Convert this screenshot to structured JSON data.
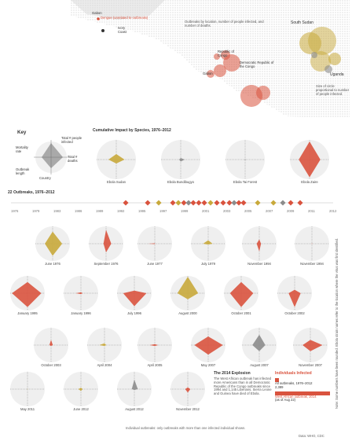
{
  "map": {
    "labels": {
      "gabon": "Gabon",
      "legend_dengue": "Dengue (unrelated to outbreaks)",
      "ivory_coast": "Ivory Coast",
      "south_sudan": "South Sudan",
      "uganda": "Uganda",
      "republic_congo": "Republic of Congo",
      "drc": "Democratic Republic of the Congo",
      "gabon2": "Gabon",
      "note_top": "Outbreaks by location, number of people infected, and number of deaths.",
      "note_bottom": "Size of circle proportional to number of people infected."
    },
    "numbers": [
      "284",
      "318",
      "425",
      "38",
      "57",
      "66",
      "33",
      "64",
      "17",
      "315",
      "52",
      "11",
      "18",
      "264",
      "7",
      "425",
      "93",
      "59",
      "2",
      "4"
    ]
  },
  "key": {
    "title": "Key",
    "labels": {
      "infected": "Total # people infected",
      "deaths": "Total # deaths",
      "mortality": "Mortality rate",
      "lost": "Outbreak length",
      "strain": "Strain"
    },
    "example_label": "Country"
  },
  "cumulative": {
    "title": "Cumulative Impact by Species, 1976–2012",
    "species": [
      {
        "label": "Ebola Sudan",
        "color": "#c8a93b",
        "top": "779",
        "left": "412",
        "right": "",
        "bottom": "53%",
        "shape": [
          0.28,
          0.42,
          0.2,
          0.4
        ]
      },
      {
        "label": "Ebola Bundibugyo",
        "color": "#8c8c8c",
        "top": "",
        "left": "",
        "right": "",
        "bottom": "",
        "shape": [
          0.08,
          0.2,
          0.1,
          0.08
        ]
      },
      {
        "label": "Ebola Tai Forest",
        "color": "#333333",
        "top": "",
        "left": "",
        "right": "",
        "bottom": "",
        "shape": [
          0.02,
          0.02,
          0.02,
          0.02
        ]
      },
      {
        "label": "Ebola Zaire",
        "color": "#d9533e",
        "top": "",
        "left": "1,121",
        "right": "1,421",
        "bottom": "",
        "shape": [
          0.92,
          0.55,
          0.9,
          0.55
        ]
      }
    ]
  },
  "outbreaks": {
    "title": "22 Outbreaks, 1976–2012",
    "timeline_years": [
      "1976",
      "1979",
      "1983",
      "1986",
      "1989",
      "1992",
      "1995",
      "1997",
      "1999",
      "2001",
      "2003",
      "2005",
      "2007",
      "2009",
      "2011",
      "2012"
    ]
  },
  "panels": [
    {
      "label": "June 1976",
      "color": "#c8a93b",
      "shape": [
        0.7,
        0.55,
        0.7,
        0.45
      ]
    },
    {
      "label": "September 1976",
      "color": "#d9533e",
      "shape": [
        0.8,
        0.3,
        0.5,
        0.15
      ]
    },
    {
      "label": "June 1977",
      "color": "#d9533e",
      "shape": [
        0.02,
        0.02,
        0.02,
        0.4
      ]
    },
    {
      "label": "July 1979",
      "color": "#c8a93b",
      "shape": [
        0.2,
        0.25,
        0.05,
        0.3
      ]
    },
    {
      "label": "November 1994",
      "color": "#d9533e",
      "shape": [
        0.25,
        0.1,
        0.45,
        0.15
      ]
    },
    {
      "label": "November 1994",
      "color": "#d9533e",
      "shape": [
        0.02,
        0.02,
        0.02,
        0.02
      ]
    },
    {
      "label": "January 1995",
      "color": "#d9533e",
      "shape": [
        0.65,
        0.8,
        0.8,
        0.9
      ]
    },
    {
      "label": "January 1996",
      "color": "#d9533e",
      "shape": [
        0.05,
        0.1,
        0.05,
        0.3
      ]
    },
    {
      "label": "July 1996",
      "color": "#d9533e",
      "shape": [
        0.15,
        0.7,
        0.75,
        0.65
      ]
    },
    {
      "label": "August 2000",
      "color": "#c8a93b",
      "shape": [
        0.95,
        0.6,
        0.35,
        0.6
      ]
    },
    {
      "label": "October 2001",
      "color": "#d9533e",
      "shape": [
        0.65,
        0.7,
        0.8,
        0.65
      ]
    },
    {
      "label": "October 2002",
      "color": "#d9533e",
      "shape": [
        0.2,
        0.35,
        0.8,
        0.35
      ]
    },
    {
      "label": "October 2003",
      "color": "#d9533e",
      "shape": [
        0.3,
        0.1,
        0.05,
        0.1
      ]
    },
    {
      "label": "April 2004",
      "color": "#c8a93b",
      "shape": [
        0.1,
        0.1,
        0.05,
        0.3
      ]
    },
    {
      "label": "April 2005",
      "color": "#d9533e",
      "shape": [
        0.05,
        0.2,
        0.05,
        0.3
      ]
    },
    {
      "label": "May 2007",
      "color": "#d9533e",
      "shape": [
        0.5,
        0.85,
        0.55,
        0.8
      ]
    },
    {
      "label": "August 2007",
      "color": "#8c8c8c",
      "shape": [
        0.6,
        0.35,
        0.35,
        0.4
      ]
    },
    {
      "label": "November 2007",
      "color": "#d9533e",
      "shape": [
        0.3,
        0.7,
        0.35,
        0.45
      ]
    },
    {
      "label": "May 2011",
      "color": "#c8a93b",
      "shape": [
        0.02,
        0.02,
        0.02,
        0.02
      ]
    },
    {
      "label": "June 2012",
      "color": "#c8a93b",
      "shape": [
        0.08,
        0.1,
        0.1,
        0.15
      ]
    },
    {
      "label": "August 2012",
      "color": "#8c8c8c",
      "shape": [
        0.55,
        0.2,
        0.05,
        0.15
      ]
    },
    {
      "label": "November 2012",
      "color": "#d9533e",
      "shape": [
        0.1,
        0.15,
        0.2,
        0.15
      ]
    }
  ],
  "explosion": {
    "title": "The 2014 Explosion",
    "text": "The West African outbreak has infected more Americans than in all Democratic Republic of the Congo outbreaks since 1994 and 1,145 Liberians, Sierra Leone and Guinea have died of Ebola."
  },
  "infected_legend": {
    "title": "Individuals Infected",
    "row1": "All outbreaks, 1976–2012",
    "row1_value": "2,389",
    "row2": "West African outbreak, 2014",
    "row2_value": "(as of Aug 22)"
  },
  "footnote": "Individual outbreaks: only outbreaks with more than one infected individual shown.",
  "credit": "Data: WHO, CDC",
  "side_note": "Note: Some numbers have been rounded. Ebola strain names refer to the location where the virus was first identified.",
  "chart_data": {
    "type": "radar",
    "axes": [
      "Total # people infected",
      "Total # deaths",
      "Mortality rate",
      "Outbreak length"
    ],
    "series": [
      {
        "name": "Ebola Sudan",
        "values": [
          0.28,
          0.42,
          0.2,
          0.4
        ]
      },
      {
        "name": "Ebola Bundibugyo",
        "values": [
          0.08,
          0.2,
          0.1,
          0.08
        ]
      },
      {
        "name": "Ebola Tai Forest",
        "values": [
          0.02,
          0.02,
          0.02,
          0.02
        ]
      },
      {
        "name": "Ebola Zaire",
        "values": [
          0.92,
          0.55,
          0.9,
          0.55
        ]
      }
    ]
  }
}
